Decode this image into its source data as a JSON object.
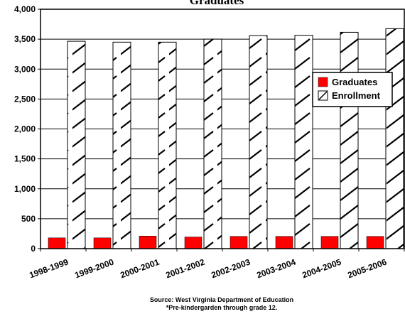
{
  "chart_data": {
    "type": "bar",
    "title": "Graduates",
    "categories": [
      "1998-1999",
      "1999-2000",
      "2000-2001",
      "2001-2002",
      "2002-2003",
      "2003-2004",
      "2004-2005",
      "2005-2006"
    ],
    "series": [
      {
        "name": "Graduates",
        "values": [
          180,
          180,
          210,
          195,
          205,
          205,
          205,
          205
        ],
        "color": "#ff0000",
        "pattern": "solid"
      },
      {
        "name": "Enrollment",
        "values": [
          3465,
          3450,
          3450,
          3500,
          3560,
          3565,
          3615,
          3675
        ],
        "color": "#ffffff",
        "pattern": "diagonal-hatch"
      }
    ],
    "ylim": [
      0,
      4000
    ],
    "yticks": [
      "0",
      "500",
      "1,000",
      "1,500",
      "2,000",
      "2,500",
      "3,000",
      "3,500",
      "4,000"
    ],
    "grid": true,
    "legend_position": "right",
    "notes": [
      "Source: West Virginia Department of Education",
      "*Pre-kindergarden through grade 12."
    ]
  }
}
